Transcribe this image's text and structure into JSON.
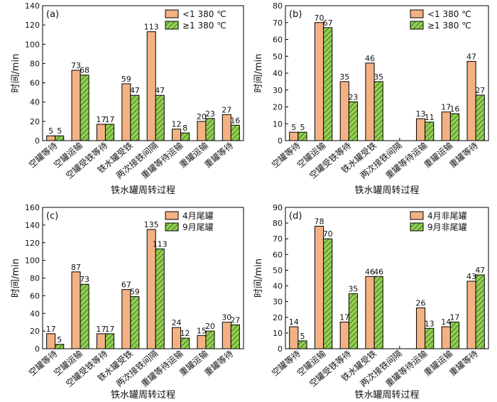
{
  "colors": {
    "orange": "#F4B183",
    "green": "#92D050",
    "stroke": "#000000"
  },
  "chart_data": [
    {
      "type": "bar",
      "panel_label": "(a)",
      "categories": [
        "空罐等待",
        "空罐运输",
        "空罐受铁等待",
        "铁水罐受铁",
        "两次接铁间隔",
        "重罐等待运输",
        "重罐运输",
        "重罐等待"
      ],
      "series": [
        {
          "name": "<1 380 ℃",
          "values": [
            5,
            73,
            17,
            59,
            113,
            12,
            20,
            27
          ]
        },
        {
          "name": "≥1 380 ℃",
          "values": [
            5,
            68,
            17,
            47,
            47,
            8,
            23,
            16
          ]
        }
      ],
      "xlabel": "铁水罐周转过程",
      "ylabel": "时间/min",
      "ylim": [
        0,
        140
      ],
      "yticks": [
        0,
        20,
        40,
        60,
        80,
        100,
        120,
        140
      ],
      "legend": "top-right"
    },
    {
      "type": "bar",
      "panel_label": "(b)",
      "categories": [
        "空罐等待",
        "空罐运输",
        "空罐受铁等待",
        "铁水罐受铁",
        "两次接铁间隔",
        "重罐等待运输",
        "重罐运输",
        "重罐等待"
      ],
      "series": [
        {
          "name": "<1 380 ℃",
          "values": [
            5,
            70,
            35,
            46,
            null,
            13,
            17,
            47
          ]
        },
        {
          "name": "≥1 380 ℃",
          "values": [
            5,
            67,
            23,
            35,
            null,
            11,
            16,
            27
          ]
        }
      ],
      "xlabel": "铁水罐周转过程",
      "ylabel": "时间/min",
      "ylim": [
        0,
        80
      ],
      "yticks": [
        0,
        10,
        20,
        30,
        40,
        50,
        60,
        70,
        80
      ],
      "legend": "top-right"
    },
    {
      "type": "bar",
      "panel_label": "(c)",
      "categories": [
        "空罐等待",
        "空罐运输",
        "空罐受铁等待",
        "铁水罐受铁",
        "两次接铁间隔",
        "重罐等待运输",
        "重罐运输",
        "重罐等待"
      ],
      "series": [
        {
          "name": "4月尾罐",
          "values": [
            17,
            87,
            17,
            67,
            135,
            24,
            15,
            30
          ]
        },
        {
          "name": "9月尾罐",
          "values": [
            5,
            73,
            17,
            59,
            113,
            12,
            20,
            27
          ]
        }
      ],
      "xlabel": "铁水罐周转过程",
      "ylabel": "时间/min",
      "ylim": [
        0,
        160
      ],
      "yticks": [
        0,
        20,
        40,
        60,
        80,
        100,
        120,
        140,
        160
      ],
      "legend": "top-right"
    },
    {
      "type": "bar",
      "panel_label": "(d)",
      "categories": [
        "空罐等待",
        "空罐运输",
        "空罐受铁等待",
        "铁水罐受铁",
        "两次接铁间隔",
        "重罐等待运输",
        "重罐运输",
        "重罐等待"
      ],
      "series": [
        {
          "name": "4月非尾罐",
          "values": [
            14,
            78,
            17,
            46,
            null,
            26,
            14,
            43
          ]
        },
        {
          "name": "9月非尾罐",
          "values": [
            5,
            70,
            35,
            46,
            null,
            13,
            17,
            47
          ]
        }
      ],
      "xlabel": "铁水罐周转过程",
      "ylabel": "时间/min",
      "ylim": [
        0,
        90
      ],
      "yticks": [
        0,
        10,
        20,
        30,
        40,
        50,
        60,
        70,
        80,
        90
      ],
      "legend": "top-right"
    }
  ]
}
